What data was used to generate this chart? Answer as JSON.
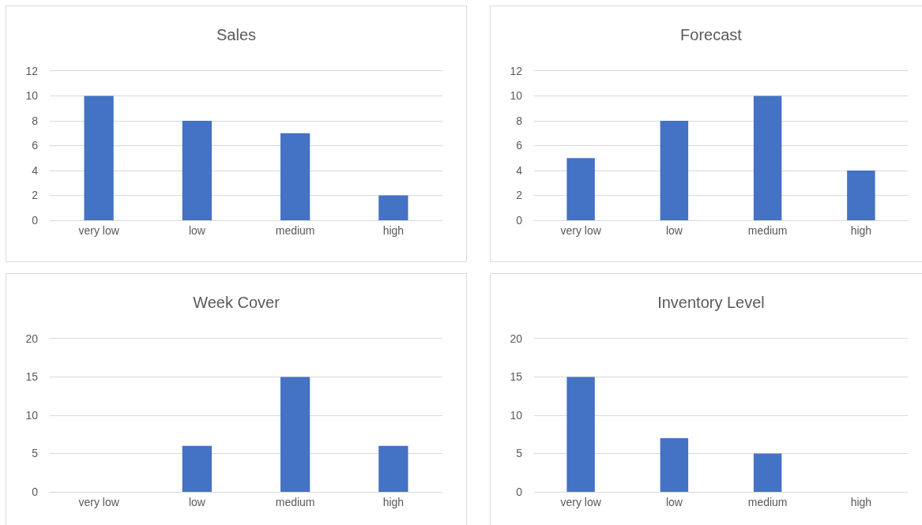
{
  "chart_data": [
    {
      "type": "bar",
      "title": "Sales",
      "categories": [
        "very low",
        "low",
        "medium",
        "high"
      ],
      "values": [
        10,
        8,
        7,
        2
      ],
      "color": "#4472c4",
      "ylim": [
        0,
        12
      ],
      "yticks": [
        0,
        2,
        4,
        6,
        8,
        10,
        12
      ],
      "grid": "y"
    },
    {
      "type": "bar",
      "title": "Forecast",
      "categories": [
        "very low",
        "low",
        "medium",
        "high"
      ],
      "values": [
        5,
        8,
        10,
        4
      ],
      "color": "#4472c4",
      "ylim": [
        0,
        12
      ],
      "yticks": [
        0,
        2,
        4,
        6,
        8,
        10,
        12
      ],
      "grid": "y"
    },
    {
      "type": "bar",
      "title": "Week Cover",
      "categories": [
        "very low",
        "low",
        "medium",
        "high"
      ],
      "values": [
        0,
        6,
        15,
        6
      ],
      "color": "#4472c4",
      "ylim": [
        0,
        20
      ],
      "yticks": [
        0,
        5,
        10,
        15,
        20
      ],
      "grid": "y"
    },
    {
      "type": "bar",
      "title": "Inventory Level",
      "categories": [
        "very low",
        "low",
        "medium",
        "high"
      ],
      "values": [
        15,
        7,
        5,
        0
      ],
      "color": "#4472c4",
      "ylim": [
        0,
        20
      ],
      "yticks": [
        0,
        5,
        10,
        15,
        20
      ],
      "grid": "y"
    }
  ]
}
